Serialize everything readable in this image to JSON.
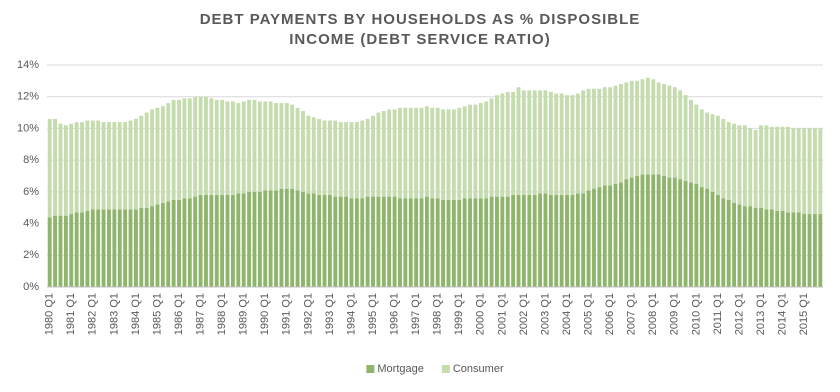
{
  "chart_data": {
    "type": "stacked_bar",
    "title": "DEBT PAYMENTS BY HOUSEHOLDS AS % DISPOSIBLE INCOME (DEBT SERVICE RATIO)",
    "categories": [
      "1980 Q1",
      null,
      null,
      null,
      "1981 Q1",
      null,
      null,
      null,
      "1982 Q1",
      null,
      null,
      null,
      "1983 Q1",
      null,
      null,
      null,
      "1984 Q1",
      null,
      null,
      null,
      "1985 Q1",
      null,
      null,
      null,
      "1986 Q1",
      null,
      null,
      null,
      "1987 Q1",
      null,
      null,
      null,
      "1988 Q1",
      null,
      null,
      null,
      "1989 Q1",
      null,
      null,
      null,
      "1990 Q1",
      null,
      null,
      null,
      "1991 Q1",
      null,
      null,
      null,
      "1992 Q1",
      null,
      null,
      null,
      "1993 Q1",
      null,
      null,
      null,
      "1994 Q1",
      null,
      null,
      null,
      "1995 Q1",
      null,
      null,
      null,
      "1996 Q1",
      null,
      null,
      null,
      "1997 Q1",
      null,
      null,
      null,
      "1998 Q1",
      null,
      null,
      null,
      "1999 Q1",
      null,
      null,
      null,
      "2000 Q1",
      null,
      null,
      null,
      "2001 Q1",
      null,
      null,
      null,
      "2002 Q1",
      null,
      null,
      null,
      "2003 Q1",
      null,
      null,
      null,
      "2004 Q1",
      null,
      null,
      null,
      "2005 Q1",
      null,
      null,
      null,
      "2006 Q1",
      null,
      null,
      null,
      "2007 Q1",
      null,
      null,
      null,
      "2008 Q1",
      null,
      null,
      null,
      "2009 Q1",
      null,
      null,
      null,
      "2010 Q1",
      null,
      null,
      null,
      "2011 Q1",
      null,
      null,
      null,
      "2012 Q1",
      null,
      null,
      null,
      "2013 Q1",
      null,
      null,
      null,
      "2014 Q1",
      null,
      null,
      null,
      "2015 Q1",
      null,
      null,
      null
    ],
    "series": [
      {
        "name": "Mortgage",
        "color": "#8fb56c",
        "values": [
          4.4,
          4.5,
          4.5,
          4.5,
          4.6,
          4.7,
          4.7,
          4.8,
          4.9,
          4.9,
          4.9,
          4.9,
          4.9,
          4.9,
          4.9,
          4.9,
          4.9,
          5.0,
          5.0,
          5.1,
          5.2,
          5.3,
          5.4,
          5.5,
          5.5,
          5.6,
          5.6,
          5.7,
          5.8,
          5.8,
          5.8,
          5.8,
          5.8,
          5.8,
          5.8,
          5.9,
          5.9,
          6.0,
          6.0,
          6.0,
          6.1,
          6.1,
          6.1,
          6.2,
          6.2,
          6.2,
          6.1,
          6.0,
          5.9,
          5.9,
          5.8,
          5.8,
          5.8,
          5.7,
          5.7,
          5.7,
          5.6,
          5.6,
          5.6,
          5.7,
          5.7,
          5.7,
          5.7,
          5.7,
          5.7,
          5.6,
          5.6,
          5.6,
          5.6,
          5.6,
          5.7,
          5.6,
          5.6,
          5.5,
          5.5,
          5.5,
          5.5,
          5.6,
          5.6,
          5.6,
          5.6,
          5.6,
          5.7,
          5.7,
          5.7,
          5.7,
          5.8,
          5.8,
          5.8,
          5.8,
          5.8,
          5.9,
          5.9,
          5.8,
          5.8,
          5.8,
          5.8,
          5.8,
          5.9,
          5.9,
          6.1,
          6.2,
          6.3,
          6.4,
          6.4,
          6.5,
          6.6,
          6.8,
          6.9,
          7.0,
          7.1,
          7.1,
          7.1,
          7.1,
          7.0,
          6.9,
          6.9,
          6.8,
          6.7,
          6.6,
          6.5,
          6.3,
          6.2,
          6.0,
          5.8,
          5.6,
          5.5,
          5.3,
          5.2,
          5.1,
          5.1,
          5.0,
          5.0,
          4.9,
          4.9,
          4.8,
          4.8,
          4.7,
          4.7,
          4.7,
          4.6,
          4.6,
          4.6,
          4.6
        ]
      },
      {
        "name": "Consumer",
        "color": "#c5dcaf",
        "values": [
          6.2,
          6.1,
          5.8,
          5.7,
          5.7,
          5.7,
          5.7,
          5.7,
          5.6,
          5.6,
          5.5,
          5.5,
          5.5,
          5.5,
          5.5,
          5.6,
          5.7,
          5.8,
          6.0,
          6.1,
          6.1,
          6.1,
          6.2,
          6.3,
          6.3,
          6.3,
          6.3,
          6.3,
          6.2,
          6.2,
          6.1,
          6.0,
          6.0,
          5.9,
          5.9,
          5.7,
          5.8,
          5.8,
          5.8,
          5.7,
          5.6,
          5.6,
          5.5,
          5.4,
          5.4,
          5.3,
          5.2,
          5.1,
          4.9,
          4.8,
          4.8,
          4.7,
          4.7,
          4.8,
          4.7,
          4.7,
          4.8,
          4.8,
          4.9,
          4.9,
          5.1,
          5.3,
          5.4,
          5.5,
          5.5,
          5.7,
          5.7,
          5.7,
          5.7,
          5.7,
          5.7,
          5.7,
          5.7,
          5.7,
          5.7,
          5.7,
          5.8,
          5.8,
          5.9,
          5.9,
          6.0,
          6.1,
          6.2,
          6.4,
          6.5,
          6.6,
          6.5,
          6.8,
          6.6,
          6.6,
          6.6,
          6.5,
          6.5,
          6.5,
          6.4,
          6.4,
          6.3,
          6.3,
          6.3,
          6.5,
          6.4,
          6.3,
          6.2,
          6.2,
          6.2,
          6.2,
          6.2,
          6.1,
          6.1,
          6.0,
          6.0,
          6.1,
          6.0,
          5.8,
          5.8,
          5.8,
          5.7,
          5.6,
          5.4,
          5.2,
          5.0,
          4.9,
          4.8,
          4.9,
          5.0,
          5.0,
          4.9,
          5.0,
          5.0,
          5.1,
          4.9,
          4.9,
          5.2,
          5.3,
          5.2,
          5.3,
          5.3,
          5.4,
          5.3,
          5.3,
          5.4,
          5.4,
          5.4,
          5.4
        ]
      }
    ],
    "ylim": [
      0,
      14
    ],
    "yticks": [
      {
        "value": 0,
        "label": "0%"
      },
      {
        "value": 2,
        "label": "2%"
      },
      {
        "value": 4,
        "label": "4%"
      },
      {
        "value": 6,
        "label": "6%"
      },
      {
        "value": 8,
        "label": "8%"
      },
      {
        "value": 10,
        "label": "10%"
      },
      {
        "value": 12,
        "label": "12%"
      },
      {
        "value": 14,
        "label": "14%"
      }
    ],
    "grid": true,
    "legend": "bottom"
  }
}
